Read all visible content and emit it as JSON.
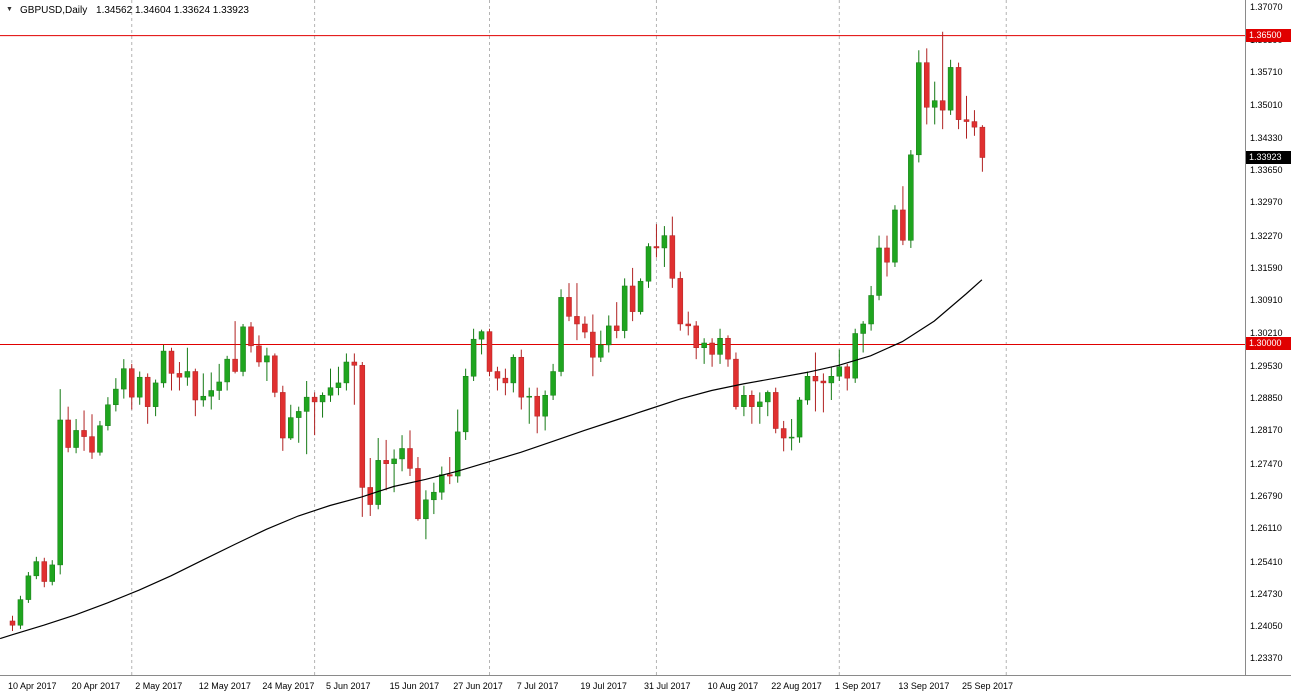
{
  "title": {
    "symbol_period": "GBPUSD,Daily",
    "ohlc": "1.34562 1.34604 1.33624 1.33923"
  },
  "colors": {
    "background": "#ffffff",
    "bull": "#1fa51f",
    "bull_border": "#157a15",
    "bear": "#e03030",
    "bear_border": "#b02222",
    "grid": "#b4b4b4",
    "ma_line": "#000000",
    "level_line": "#e00000",
    "current_tag_bg": "#000000",
    "axis_line": "#8a8a8a",
    "text": "#000000"
  },
  "chart_data": {
    "type": "candlestick",
    "symbol": "GBPUSD",
    "timeframe": "Daily",
    "current_bar": {
      "open": 1.34562,
      "high": 1.34604,
      "low": 1.33624,
      "close": 1.33923
    },
    "x_tick_labels": [
      "10 Apr 2017",
      "20 Apr 2017",
      "2 May 2017",
      "12 May 2017",
      "24 May 2017",
      "5 Jun 2017",
      "15 Jun 2017",
      "27 Jun 2017",
      "7 Jul 2017",
      "19 Jul 2017",
      "31 Jul 2017",
      "10 Aug 2017",
      "22 Aug 2017",
      "1 Sep 2017",
      "13 Sep 2017",
      "25 Sep 2017"
    ],
    "x_tick_every_n_bars": 8,
    "y_axis": {
      "top_price": 1.37238,
      "bottom_price": 1.23033,
      "labels": [
        "1.37070",
        "1.36390",
        "1.35710",
        "1.35010",
        "1.34330",
        "1.33650",
        "1.32970",
        "1.32270",
        "1.31590",
        "1.30910",
        "1.30210",
        "1.29530",
        "1.28850",
        "1.28170",
        "1.27470",
        "1.26790",
        "1.26110",
        "1.25410",
        "1.24730",
        "1.24050",
        "1.23370"
      ]
    },
    "hlines": [
      {
        "price": 1.365,
        "label": "1.36500"
      },
      {
        "price": 1.3,
        "label": "1.30000"
      }
    ],
    "current_price_label": {
      "price": 1.33923,
      "label": "1.33923"
    },
    "separators_bar_idx": [
      15,
      38,
      60,
      81,
      104,
      125
    ],
    "grid": "vertical-dashed-only",
    "legend_position": "none",
    "candles": [
      [
        1.2417,
        1.2428,
        1.2396,
        1.2408
      ],
      [
        1.2408,
        1.247,
        1.24,
        1.2462
      ],
      [
        1.2462,
        1.252,
        1.2455,
        1.2512
      ],
      [
        1.2512,
        1.2552,
        1.2505,
        1.2542
      ],
      [
        1.2542,
        1.255,
        1.2488,
        1.25
      ],
      [
        1.25,
        1.2545,
        1.2492,
        1.2535
      ],
      [
        1.2535,
        1.2905,
        1.2515,
        1.284
      ],
      [
        1.284,
        1.2868,
        1.2772,
        1.2782
      ],
      [
        1.2782,
        1.2842,
        1.277,
        1.2818
      ],
      [
        1.2818,
        1.286,
        1.2775,
        1.2805
      ],
      [
        1.2805,
        1.2852,
        1.2758,
        1.2772
      ],
      [
        1.2772,
        1.2838,
        1.2765,
        1.2828
      ],
      [
        1.2828,
        1.2888,
        1.2818,
        1.2872
      ],
      [
        1.2872,
        1.2928,
        1.2858,
        1.2905
      ],
      [
        1.2905,
        1.2968,
        1.2885,
        1.2948
      ],
      [
        1.2948,
        1.2958,
        1.2862,
        1.2888
      ],
      [
        1.2888,
        1.2942,
        1.2872,
        1.293
      ],
      [
        1.293,
        1.2938,
        1.2832,
        1.2868
      ],
      [
        1.2868,
        1.2925,
        1.2848,
        1.2918
      ],
      [
        1.2918,
        1.2998,
        1.2908,
        1.2985
      ],
      [
        1.2985,
        1.2992,
        1.2902,
        1.2938
      ],
      [
        1.2938,
        1.2962,
        1.2902,
        1.293
      ],
      [
        1.293,
        1.2992,
        1.2912,
        1.2942
      ],
      [
        1.2942,
        1.2948,
        1.2848,
        1.2882
      ],
      [
        1.2882,
        1.2938,
        1.2868,
        1.289
      ],
      [
        1.289,
        1.294,
        1.2862,
        1.2902
      ],
      [
        1.2902,
        1.2958,
        1.2882,
        1.292
      ],
      [
        1.292,
        1.2975,
        1.2902,
        1.2968
      ],
      [
        1.2968,
        1.3048,
        1.2938,
        1.2942
      ],
      [
        1.2942,
        1.3042,
        1.2932,
        1.3036
      ],
      [
        1.3036,
        1.3046,
        1.2982,
        1.2996
      ],
      [
        1.2996,
        1.3018,
        1.2952,
        1.2962
      ],
      [
        1.2962,
        1.2992,
        1.2922,
        1.2975
      ],
      [
        1.2975,
        1.298,
        1.2888,
        1.2898
      ],
      [
        1.2898,
        1.2912,
        1.2775,
        1.2802
      ],
      [
        1.2802,
        1.2872,
        1.2798,
        1.2845
      ],
      [
        1.2845,
        1.2868,
        1.2792,
        1.2858
      ],
      [
        1.2858,
        1.2922,
        1.2768,
        1.2888
      ],
      [
        1.2888,
        1.2898,
        1.2808,
        1.2878
      ],
      [
        1.2878,
        1.2898,
        1.2845,
        1.2892
      ],
      [
        1.2892,
        1.2948,
        1.2878,
        1.2908
      ],
      [
        1.2908,
        1.2952,
        1.2892,
        1.2918
      ],
      [
        1.2918,
        1.298,
        1.2902,
        1.2962
      ],
      [
        1.2962,
        1.298,
        1.2872,
        1.2955
      ],
      [
        1.2955,
        1.2962,
        1.2636,
        1.2698
      ],
      [
        1.2698,
        1.276,
        1.2638,
        1.2662
      ],
      [
        1.2662,
        1.2802,
        1.2652,
        1.2755
      ],
      [
        1.2755,
        1.2798,
        1.2692,
        1.2748
      ],
      [
        1.2748,
        1.2778,
        1.2688,
        1.2758
      ],
      [
        1.2758,
        1.2808,
        1.2732,
        1.278
      ],
      [
        1.278,
        1.2818,
        1.2722,
        1.2738
      ],
      [
        1.2738,
        1.2762,
        1.2628,
        1.2632
      ],
      [
        1.2632,
        1.2692,
        1.2589,
        1.2672
      ],
      [
        1.2672,
        1.2708,
        1.2642,
        1.2688
      ],
      [
        1.2688,
        1.2742,
        1.2672,
        1.2725
      ],
      [
        1.2725,
        1.2762,
        1.2705,
        1.2722
      ],
      [
        1.2722,
        1.2862,
        1.2708,
        1.2815
      ],
      [
        1.2815,
        1.2948,
        1.2798,
        1.2932
      ],
      [
        1.2932,
        1.3032,
        1.2922,
        1.301
      ],
      [
        1.301,
        1.303,
        1.2978,
        1.3026
      ],
      [
        1.3026,
        1.3032,
        1.2932,
        1.2942
      ],
      [
        1.2942,
        1.2952,
        1.2902,
        1.2928
      ],
      [
        1.2928,
        1.2948,
        1.2892,
        1.2918
      ],
      [
        1.2918,
        1.2978,
        1.2898,
        1.2972
      ],
      [
        1.2972,
        1.2988,
        1.2862,
        1.2888
      ],
      [
        1.2888,
        1.2908,
        1.2832,
        1.289
      ],
      [
        1.289,
        1.2908,
        1.2812,
        1.2848
      ],
      [
        1.2848,
        1.2902,
        1.2818,
        1.2892
      ],
      [
        1.2892,
        1.2958,
        1.2882,
        1.2942
      ],
      [
        1.2942,
        1.3115,
        1.2932,
        1.3098
      ],
      [
        1.3098,
        1.3128,
        1.3048,
        1.3058
      ],
      [
        1.3058,
        1.3128,
        1.3008,
        1.3042
      ],
      [
        1.3042,
        1.3058,
        1.3012,
        1.3025
      ],
      [
        1.3025,
        1.3062,
        1.2932,
        1.2972
      ],
      [
        1.2972,
        1.3028,
        1.2962,
        1.2998
      ],
      [
        1.2998,
        1.306,
        1.2982,
        1.3038
      ],
      [
        1.3038,
        1.3088,
        1.3012,
        1.3028
      ],
      [
        1.3028,
        1.3138,
        1.3012,
        1.3122
      ],
      [
        1.3122,
        1.316,
        1.3048,
        1.3068
      ],
      [
        1.3068,
        1.3138,
        1.3062,
        1.3132
      ],
      [
        1.3132,
        1.3212,
        1.3118,
        1.3205
      ],
      [
        1.3205,
        1.3252,
        1.3182,
        1.3202
      ],
      [
        1.3202,
        1.3248,
        1.3162,
        1.3228
      ],
      [
        1.3228,
        1.3268,
        1.3118,
        1.3138
      ],
      [
        1.3138,
        1.3152,
        1.3028,
        1.3042
      ],
      [
        1.3042,
        1.3068,
        1.3018,
        1.3038
      ],
      [
        1.3038,
        1.3048,
        1.2968,
        1.2992
      ],
      [
        1.2992,
        1.3012,
        1.2958,
        1.3002
      ],
      [
        1.3002,
        1.3012,
        1.2952,
        1.2978
      ],
      [
        1.2978,
        1.3032,
        1.2958,
        1.3012
      ],
      [
        1.3012,
        1.3018,
        1.2952,
        1.2968
      ],
      [
        1.2968,
        1.2982,
        1.2862,
        1.2868
      ],
      [
        1.2868,
        1.2912,
        1.2848,
        1.2892
      ],
      [
        1.2892,
        1.2902,
        1.2832,
        1.2868
      ],
      [
        1.2868,
        1.2898,
        1.2832,
        1.2878
      ],
      [
        1.2878,
        1.2902,
        1.2848,
        1.2898
      ],
      [
        1.2898,
        1.2908,
        1.2812,
        1.2822
      ],
      [
        1.2822,
        1.2838,
        1.2774,
        1.2802
      ],
      [
        1.2802,
        1.2842,
        1.2776,
        1.2804
      ],
      [
        1.2804,
        1.2888,
        1.2792,
        1.2882
      ],
      [
        1.2882,
        1.2942,
        1.2872,
        1.2932
      ],
      [
        1.2932,
        1.2982,
        1.2858,
        1.2922
      ],
      [
        1.2922,
        1.2938,
        1.2856,
        1.2918
      ],
      [
        1.2918,
        1.2952,
        1.2882,
        1.2932
      ],
      [
        1.2932,
        1.2988,
        1.2922,
        1.2952
      ],
      [
        1.2952,
        1.2958,
        1.2902,
        1.2928
      ],
      [
        1.2928,
        1.3032,
        1.2918,
        1.3022
      ],
      [
        1.3022,
        1.3048,
        1.2982,
        1.3042
      ],
      [
        1.3042,
        1.3122,
        1.3028,
        1.3102
      ],
      [
        1.3102,
        1.3228,
        1.3092,
        1.3202
      ],
      [
        1.3202,
        1.3228,
        1.3142,
        1.3172
      ],
      [
        1.3172,
        1.3292,
        1.3162,
        1.3282
      ],
      [
        1.3282,
        1.3332,
        1.3208,
        1.3218
      ],
      [
        1.3218,
        1.3408,
        1.3202,
        1.3398
      ],
      [
        1.3398,
        1.3618,
        1.3382,
        1.3592
      ],
      [
        1.3592,
        1.3622,
        1.3462,
        1.3498
      ],
      [
        1.3498,
        1.3552,
        1.3462,
        1.3512
      ],
      [
        1.3512,
        1.3657,
        1.3452,
        1.3492
      ],
      [
        1.3492,
        1.3598,
        1.3482,
        1.3582
      ],
      [
        1.3582,
        1.3592,
        1.3452,
        1.3472
      ],
      [
        1.3472,
        1.3522,
        1.3432,
        1.3468
      ],
      [
        1.3468,
        1.3492,
        1.3438,
        1.34562
      ],
      [
        1.34562,
        1.34604,
        1.33624,
        1.33923
      ]
    ],
    "ma_points": [
      [
        -1.5,
        1.238
      ],
      [
        0,
        1.2388
      ],
      [
        4,
        1.2408
      ],
      [
        8,
        1.243
      ],
      [
        12,
        1.2455
      ],
      [
        16,
        1.2482
      ],
      [
        20,
        1.2512
      ],
      [
        24,
        1.2545
      ],
      [
        28,
        1.2578
      ],
      [
        32,
        1.261
      ],
      [
        36,
        1.2638
      ],
      [
        40,
        1.266
      ],
      [
        44,
        1.2678
      ],
      [
        48,
        1.27
      ],
      [
        52,
        1.2715
      ],
      [
        56,
        1.2732
      ],
      [
        60,
        1.2752
      ],
      [
        64,
        1.2772
      ],
      [
        68,
        1.2795
      ],
      [
        72,
        1.2818
      ],
      [
        76,
        1.284
      ],
      [
        80,
        1.2862
      ],
      [
        84,
        1.2884
      ],
      [
        88,
        1.2902
      ],
      [
        92,
        1.2916
      ],
      [
        96,
        1.2928
      ],
      [
        100,
        1.294
      ],
      [
        104,
        1.2955
      ],
      [
        108,
        1.2975
      ],
      [
        112,
        1.3005
      ],
      [
        116,
        1.3048
      ],
      [
        120,
        1.3105
      ],
      [
        122,
        1.3135
      ]
    ]
  }
}
